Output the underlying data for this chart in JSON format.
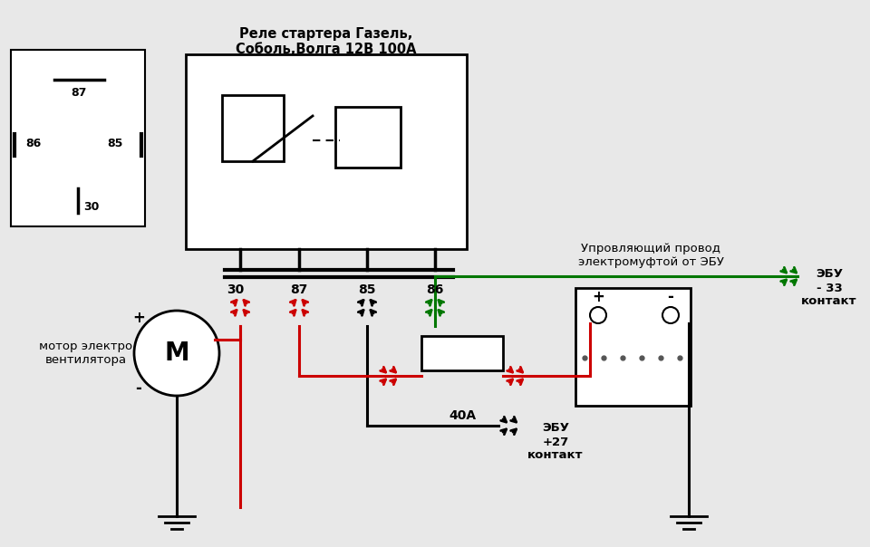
{
  "bg_color": "#e8e8e8",
  "title_relay": "Реле стартера Газель,\nСоболь,Волга 12В 100А",
  "label_motor": "мотор электро\nвентилятора",
  "label_ebu_27": "ЭБУ\n+27\nконтакт",
  "label_ebu_33": "ЭБУ\n- 33\nконтакт",
  "label_control": "Упровляющий провод\nэлектромуфтой от ЭБУ",
  "label_fuse": "40А",
  "red_color": "#cc0000",
  "green_color": "#007700",
  "black_color": "#000000",
  "wire_lw": 2.2
}
